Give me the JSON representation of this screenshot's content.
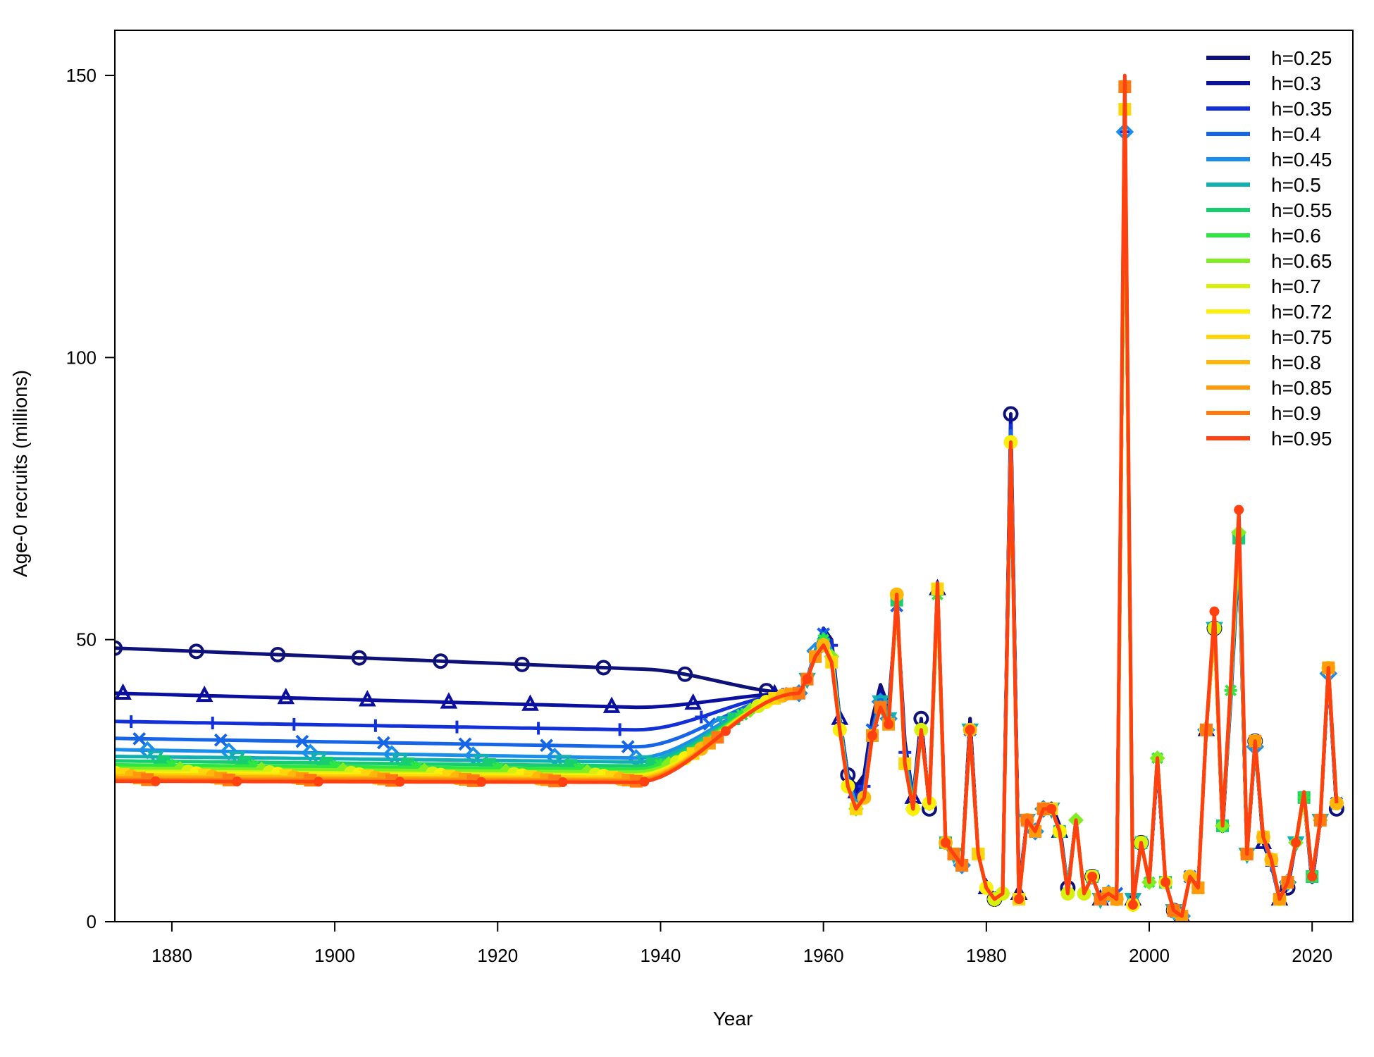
{
  "chart_data": {
    "type": "line",
    "title": "",
    "xlabel": "Year",
    "ylabel": "Age-0 recruits (millions)",
    "xlim": [
      1873,
      2025
    ],
    "ylim": [
      0,
      158
    ],
    "xticks": [
      1880,
      1900,
      1920,
      1940,
      1960,
      1980,
      2000,
      2020
    ],
    "yticks": [
      0,
      50,
      100,
      150
    ],
    "legend_position": "top-right",
    "grid": false,
    "x": [
      1873,
      1874,
      1875,
      1876,
      1877,
      1878,
      1879,
      1880,
      1881,
      1882,
      1883,
      1884,
      1885,
      1886,
      1887,
      1888,
      1889,
      1890,
      1891,
      1892,
      1893,
      1894,
      1895,
      1896,
      1897,
      1898,
      1899,
      1900,
      1901,
      1902,
      1903,
      1904,
      1905,
      1906,
      1907,
      1908,
      1909,
      1910,
      1911,
      1912,
      1913,
      1914,
      1915,
      1916,
      1917,
      1918,
      1919,
      1920,
      1921,
      1922,
      1923,
      1924,
      1925,
      1926,
      1927,
      1928,
      1929,
      1930,
      1931,
      1932,
      1933,
      1934,
      1935,
      1936,
      1937,
      1938,
      1939,
      1940,
      1941,
      1942,
      1943,
      1944,
      1945,
      1946,
      1947,
      1948,
      1949,
      1950,
      1951,
      1952,
      1953,
      1954,
      1955,
      1956,
      1957,
      1958,
      1959,
      1960,
      1961,
      1962,
      1963,
      1964,
      1965,
      1966,
      1967,
      1968,
      1969,
      1970,
      1971,
      1972,
      1973,
      1974,
      1975,
      1976,
      1977,
      1978,
      1979,
      1980,
      1981,
      1982,
      1983,
      1984,
      1985,
      1986,
      1987,
      1988,
      1989,
      1990,
      1991,
      1992,
      1993,
      1994,
      1995,
      1996,
      1997,
      1998,
      1999,
      2000,
      2001,
      2002,
      2003,
      2004,
      2005,
      2006,
      2007,
      2008,
      2009,
      2010,
      2011,
      2012,
      2013,
      2014,
      2015,
      2016,
      2017,
      2018,
      2019,
      2020,
      2021,
      2022,
      2023,
      2024,
      2025
    ],
    "recent_start_year": 1958,
    "recent_by_series": [
      [
        43,
        48,
        52,
        50,
        36,
        26,
        24,
        26,
        36,
        42,
        38,
        56,
        32,
        22,
        36,
        20,
        60,
        14,
        12,
        10,
        36,
        12,
        6,
        4,
        5,
        90,
        6,
        18,
        16,
        20,
        21,
        17,
        6,
        18,
        5,
        8,
        4,
        5,
        5,
        140,
        4,
        14,
        7,
        28,
        7,
        2,
        1,
        8,
        6,
        34,
        52,
        16,
        40,
        65,
        12,
        32,
        14,
        10,
        4,
        6,
        14,
        22,
        7,
        18,
        45,
        20
      ],
      [
        43,
        48,
        52,
        49,
        36,
        26,
        23,
        25,
        35,
        41,
        38,
        56,
        31,
        22,
        35,
        21,
        59,
        14,
        12,
        10,
        35,
        12,
        6,
        4,
        5,
        89,
        5,
        18,
        16,
        20,
        20,
        16,
        6,
        18,
        5,
        8,
        4,
        5,
        5,
        140,
        4,
        14,
        7,
        28,
        7,
        2,
        1,
        8,
        6,
        34,
        52,
        17,
        39,
        65,
        12,
        32,
        14,
        10,
        4,
        6,
        14,
        22,
        7,
        18,
        44,
        20
      ],
      [
        43,
        48,
        52,
        49,
        36,
        26,
        22,
        24,
        34,
        40,
        37,
        56,
        30,
        22,
        34,
        21,
        58,
        14,
        12,
        10,
        34,
        12,
        6,
        4,
        5,
        88,
        5,
        18,
        16,
        20,
        20,
        16,
        6,
        18,
        5,
        8,
        4,
        5,
        5,
        140,
        4,
        14,
        7,
        28,
        7,
        2,
        1,
        8,
        6,
        34,
        52,
        17,
        40,
        65,
        12,
        31,
        15,
        10,
        4,
        7,
        14,
        22,
        7,
        18,
        44,
        20
      ],
      [
        43,
        48,
        51,
        48,
        36,
        25,
        21,
        23,
        34,
        40,
        37,
        56,
        30,
        22,
        34,
        21,
        58,
        14,
        12,
        10,
        34,
        12,
        6,
        4,
        5,
        87,
        5,
        18,
        16,
        20,
        20,
        16,
        6,
        18,
        5,
        8,
        4,
        5,
        5,
        140,
        4,
        14,
        7,
        28,
        7,
        2,
        1,
        8,
        6,
        34,
        52,
        17,
        40,
        66,
        12,
        31,
        15,
        10,
        4,
        7,
        14,
        22,
        8,
        18,
        44,
        21
      ],
      [
        43,
        48,
        51,
        48,
        35,
        25,
        21,
        23,
        33,
        39,
        36,
        57,
        29,
        21,
        34,
        21,
        58,
        14,
        12,
        10,
        34,
        12,
        6,
        4,
        5,
        86,
        4,
        18,
        16,
        20,
        20,
        16,
        6,
        18,
        5,
        8,
        4,
        5,
        5,
        140,
        4,
        14,
        7,
        29,
        7,
        2,
        1,
        8,
        6,
        34,
        52,
        17,
        40,
        67,
        12,
        31,
        15,
        11,
        4,
        7,
        14,
        22,
        8,
        18,
        44,
        21
      ],
      [
        43,
        47,
        51,
        47,
        35,
        25,
        20,
        22,
        33,
        39,
        36,
        57,
        29,
        21,
        34,
        21,
        58,
        14,
        12,
        10,
        34,
        12,
        6,
        4,
        5,
        86,
        4,
        18,
        16,
        20,
        20,
        16,
        6,
        18,
        5,
        8,
        4,
        5,
        5,
        140,
        4,
        14,
        7,
        29,
        7,
        2,
        1,
        8,
        6,
        34,
        52,
        17,
        41,
        67,
        12,
        31,
        15,
        11,
        4,
        7,
        14,
        22,
        8,
        18,
        45,
        21
      ],
      [
        43,
        47,
        51,
        47,
        35,
        24,
        20,
        22,
        33,
        38,
        36,
        57,
        28,
        21,
        34,
        21,
        58,
        14,
        12,
        10,
        34,
        12,
        6,
        4,
        5,
        85,
        4,
        18,
        16,
        20,
        20,
        16,
        5,
        18,
        5,
        8,
        4,
        5,
        5,
        140,
        3,
        14,
        7,
        29,
        7,
        2,
        1,
        8,
        6,
        34,
        52,
        17,
        41,
        68,
        12,
        32,
        15,
        11,
        4,
        7,
        14,
        22,
        8,
        18,
        45,
        21
      ],
      [
        43,
        47,
        50,
        47,
        35,
        24,
        20,
        22,
        33,
        38,
        35,
        57,
        28,
        21,
        34,
        21,
        58,
        14,
        12,
        10,
        34,
        12,
        6,
        4,
        5,
        85,
        4,
        18,
        16,
        20,
        20,
        16,
        5,
        18,
        5,
        8,
        4,
        5,
        4,
        140,
        3,
        14,
        7,
        29,
        7,
        2,
        1,
        8,
        6,
        34,
        52,
        17,
        41,
        68,
        12,
        32,
        15,
        11,
        4,
        7,
        14,
        22,
        8,
        18,
        45,
        21
      ],
      [
        43,
        47,
        50,
        47,
        35,
        24,
        20,
        22,
        33,
        38,
        35,
        57,
        28,
        20,
        34,
        21,
        58,
        14,
        12,
        10,
        34,
        12,
        6,
        4,
        5,
        85,
        4,
        18,
        16,
        20,
        20,
        16,
        5,
        18,
        5,
        8,
        4,
        5,
        4,
        140,
        3,
        14,
        7,
        29,
        7,
        2,
        1,
        8,
        6,
        34,
        52,
        17,
        41,
        69,
        12,
        32,
        15,
        11,
        4,
        7,
        14,
        22,
        8,
        18,
        45,
        21
      ],
      [
        43,
        47,
        50,
        47,
        34,
        24,
        20,
        22,
        33,
        38,
        35,
        57,
        28,
        20,
        34,
        21,
        58,
        14,
        12,
        10,
        34,
        12,
        6,
        4,
        5,
        85,
        4,
        18,
        16,
        20,
        20,
        16,
        5,
        18,
        5,
        8,
        4,
        5,
        4,
        141,
        3,
        14,
        7,
        29,
        7,
        2,
        1,
        8,
        6,
        34,
        52,
        17,
        42,
        69,
        12,
        32,
        15,
        11,
        4,
        7,
        14,
        22,
        8,
        18,
        45,
        21
      ],
      [
        43,
        47,
        50,
        47,
        34,
        24,
        20,
        22,
        33,
        38,
        35,
        57,
        28,
        20,
        34,
        21,
        58,
        14,
        12,
        10,
        34,
        12,
        6,
        4,
        5,
        85,
        4,
        18,
        16,
        20,
        20,
        16,
        5,
        18,
        5,
        8,
        4,
        5,
        4,
        142,
        3,
        14,
        7,
        29,
        7,
        2,
        1,
        8,
        6,
        34,
        52,
        17,
        42,
        70,
        12,
        32,
        15,
        11,
        4,
        7,
        14,
        23,
        8,
        18,
        45,
        21
      ],
      [
        43,
        47,
        50,
        46,
        34,
        24,
        20,
        22,
        33,
        38,
        35,
        57,
        28,
        20,
        34,
        21,
        59,
        14,
        12,
        10,
        34,
        12,
        6,
        4,
        5,
        85,
        4,
        18,
        16,
        20,
        20,
        16,
        5,
        18,
        5,
        8,
        4,
        5,
        4,
        144,
        3,
        14,
        7,
        29,
        7,
        2,
        1,
        8,
        6,
        34,
        52,
        17,
        42,
        70,
        12,
        32,
        15,
        11,
        4,
        7,
        14,
        23,
        8,
        18,
        45,
        21
      ],
      [
        43,
        47,
        49,
        46,
        34,
        24,
        20,
        22,
        33,
        38,
        35,
        58,
        28,
        20,
        34,
        21,
        59,
        14,
        12,
        10,
        34,
        12,
        6,
        4,
        5,
        85,
        4,
        18,
        16,
        20,
        20,
        16,
        5,
        18,
        5,
        8,
        4,
        5,
        4,
        146,
        3,
        14,
        7,
        29,
        7,
        2,
        1,
        8,
        6,
        34,
        53,
        17,
        42,
        71,
        12,
        32,
        15,
        11,
        4,
        7,
        14,
        23,
        8,
        18,
        45,
        21
      ],
      [
        43,
        47,
        49,
        46,
        34,
        24,
        20,
        22,
        33,
        38,
        35,
        58,
        28,
        20,
        34,
        21,
        59,
        14,
        12,
        10,
        34,
        12,
        6,
        4,
        5,
        85,
        4,
        18,
        16,
        20,
        20,
        16,
        5,
        18,
        5,
        8,
        4,
        5,
        4,
        147,
        3,
        14,
        7,
        29,
        7,
        2,
        1,
        8,
        6,
        34,
        53,
        17,
        42,
        71,
        12,
        32,
        15,
        11,
        4,
        7,
        14,
        23,
        8,
        18,
        45,
        21
      ],
      [
        43,
        47,
        49,
        46,
        34,
        24,
        20,
        22,
        33,
        38,
        35,
        58,
        28,
        20,
        34,
        21,
        60,
        14,
        12,
        10,
        34,
        12,
        6,
        4,
        5,
        85,
        4,
        18,
        16,
        20,
        20,
        16,
        5,
        18,
        5,
        8,
        4,
        5,
        4,
        148,
        3,
        14,
        7,
        29,
        7,
        2,
        1,
        8,
        6,
        34,
        54,
        17,
        42,
        72,
        12,
        32,
        15,
        11,
        4,
        7,
        14,
        23,
        8,
        18,
        45,
        21
      ],
      [
        43,
        47,
        49,
        46,
        34,
        24,
        20,
        22,
        33,
        38,
        35,
        58,
        28,
        20,
        34,
        21,
        60,
        14,
        12,
        10,
        34,
        12,
        6,
        4,
        5,
        85,
        4,
        18,
        16,
        20,
        20,
        16,
        5,
        18,
        5,
        8,
        4,
        5,
        4,
        150,
        3,
        14,
        7,
        29,
        7,
        2,
        1,
        8,
        6,
        34,
        55,
        17,
        42,
        73,
        12,
        32,
        15,
        11,
        4,
        7,
        14,
        23,
        8,
        18,
        45,
        21
      ]
    ],
    "series": [
      {
        "name": "h=0.25",
        "color": "#0d1178",
        "marker": "circle",
        "plateau": 48.5,
        "dip": 44.8
      },
      {
        "name": "h=0.3",
        "color": "#0a0f9e",
        "marker": "triangle",
        "plateau": 40.5,
        "dip": 38.0
      },
      {
        "name": "h=0.35",
        "color": "#1230d8",
        "marker": "plus",
        "plateau": 35.5,
        "dip": 34.0
      },
      {
        "name": "h=0.4",
        "color": "#1565e6",
        "marker": "x",
        "plateau": 32.5,
        "dip": 31.0
      },
      {
        "name": "h=0.45",
        "color": "#1a8ee8",
        "marker": "diamond",
        "plateau": 30.5,
        "dip": 29.0
      },
      {
        "name": "h=0.5",
        "color": "#12b0b0",
        "marker": "triangle-down",
        "plateau": 29.3,
        "dip": 28.3
      },
      {
        "name": "h=0.55",
        "color": "#18cc70",
        "marker": "square-x",
        "plateau": 28.5,
        "dip": 27.6
      },
      {
        "name": "h=0.6",
        "color": "#2ee642",
        "marker": "star",
        "plateau": 27.8,
        "dip": 27.0
      },
      {
        "name": "h=0.65",
        "color": "#80ee20",
        "marker": "diamond-plus",
        "plateau": 27.2,
        "dip": 26.5
      },
      {
        "name": "h=0.7",
        "color": "#d8f010",
        "marker": "circle-plus",
        "plateau": 26.7,
        "dip": 26.0
      },
      {
        "name": "h=0.72",
        "color": "#fbf00c",
        "marker": "star6",
        "plateau": 26.4,
        "dip": 25.8
      },
      {
        "name": "h=0.75",
        "color": "#ffd60a",
        "marker": "square-plus",
        "plateau": 26.1,
        "dip": 25.6
      },
      {
        "name": "h=0.8",
        "color": "#ffb80a",
        "marker": "circle-x",
        "plateau": 25.8,
        "dip": 25.3
      },
      {
        "name": "h=0.85",
        "color": "#ff9a0a",
        "marker": "triangle-square",
        "plateau": 25.5,
        "dip": 25.1
      },
      {
        "name": "h=0.9",
        "color": "#ff7a10",
        "marker": "square",
        "plateau": 25.2,
        "dip": 24.9
      },
      {
        "name": "h=0.95",
        "color": "#ff4010",
        "marker": "dot",
        "plateau": 24.9,
        "dip": 24.7
      }
    ]
  }
}
